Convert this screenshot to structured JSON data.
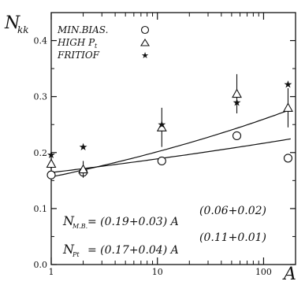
{
  "chart_data": {
    "type": "scatter",
    "ylabel": "N",
    "ylabel_sub": "kk",
    "xlabel": "A",
    "xscale": "log",
    "xlim": [
      1,
      200
    ],
    "ylim": [
      0.0,
      0.45
    ],
    "x_tick_labels": [
      "1",
      "10",
      "100"
    ],
    "y_tick_labels": [
      "0.0",
      "0.1",
      "0.2",
      "0.3",
      "0.4"
    ],
    "legend": {
      "placement": "top-left",
      "entries": [
        {
          "label": "MIN.BIAS.",
          "marker": "circle"
        },
        {
          "label": "HIGH P",
          "sub": "t",
          "marker": "triangle"
        },
        {
          "label": "FRITIOF",
          "marker": "star"
        }
      ]
    },
    "series": [
      {
        "name": "MIN.BIAS.",
        "marker": "circle",
        "points": [
          {
            "x": 1,
            "y": 0.16
          },
          {
            "x": 2,
            "y": 0.165
          },
          {
            "x": 11,
            "y": 0.185
          },
          {
            "x": 56,
            "y": 0.23
          },
          {
            "x": 170,
            "y": 0.19
          }
        ]
      },
      {
        "name": "HIGH P",
        "marker": "triangle",
        "points": [
          {
            "x": 1,
            "y": 0.18,
            "err": 0.01
          },
          {
            "x": 2,
            "y": 0.17,
            "err": 0.015
          },
          {
            "x": 11,
            "y": 0.245,
            "err": 0.035
          },
          {
            "x": 56,
            "y": 0.305,
            "err": 0.035
          },
          {
            "x": 170,
            "y": 0.28,
            "err": 0.035
          }
        ]
      },
      {
        "name": "FRITIOF",
        "marker": "star",
        "points": [
          {
            "x": 1,
            "y": 0.196
          },
          {
            "x": 2,
            "y": 0.21
          },
          {
            "x": 11,
            "y": 0.25
          },
          {
            "x": 56,
            "y": 0.29
          },
          {
            "x": 170,
            "y": 0.322
          }
        ]
      }
    ],
    "fits": [
      {
        "label_lhs": "N",
        "label_sub": "M.B.",
        "label_rhs": "= (0.19+0.03) A",
        "exponent": "(0.06+0.02)",
        "coef": 0.19,
        "power": 0.06
      },
      {
        "label_lhs": "N",
        "label_sub": "Pt",
        "label_rhs": "= (0.17+0.04) A",
        "exponent": "(0.11+0.01)",
        "coef": 0.17,
        "power": 0.11
      }
    ]
  }
}
